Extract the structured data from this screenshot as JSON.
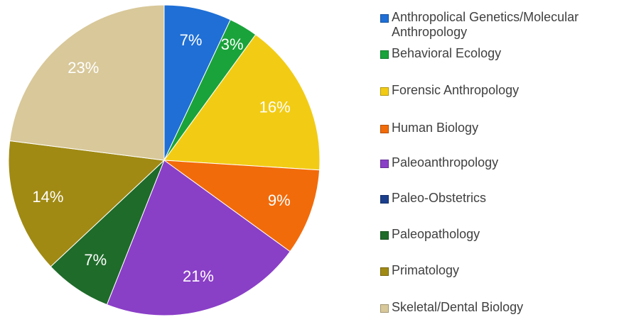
{
  "chart_data": {
    "type": "pie",
    "categories": [
      "Anthropolical Genetics/Molecular Anthropology",
      "Behavioral Ecology",
      "Forensic Anthropology",
      "Human Biology",
      "Paleoanthropology",
      "Paleo-Obstetrics",
      "Paleopathology",
      "Primatology",
      "Skeletal/Dental Biology"
    ],
    "values": [
      7,
      3,
      16,
      9,
      21,
      0,
      7,
      14,
      23
    ],
    "value_labels": [
      "7%",
      "3%",
      "16%",
      "9%",
      "21%",
      null,
      "7%",
      "14%",
      "23%"
    ],
    "colors": [
      "#1f6fd6",
      "#1aa33a",
      "#f2cc14",
      "#f26b0a",
      "#8a3fc7",
      "#1c3f8c",
      "#1f6b2a",
      "#a08a14",
      "#d8c89a"
    ],
    "legend": "right"
  }
}
